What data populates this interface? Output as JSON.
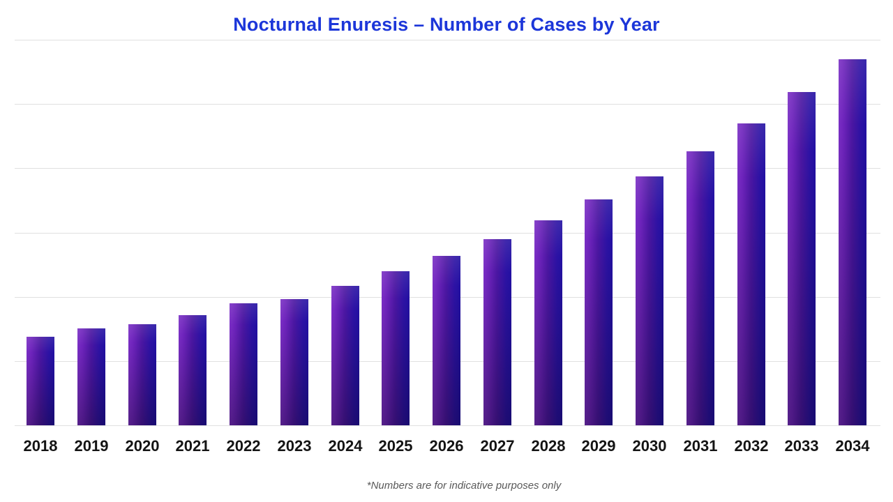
{
  "title": {
    "text": "Nocturnal Enuresis – Number of Cases by Year",
    "color": "#1c36d9"
  },
  "footnote": {
    "text": "*Numbers are for indicative purposes only",
    "color": "#595959"
  },
  "chart_data": {
    "type": "bar",
    "title": "Nocturnal Enuresis – Number of Cases by Year",
    "categories": [
      "2018",
      "2019",
      "2020",
      "2021",
      "2022",
      "2023",
      "2024",
      "2025",
      "2026",
      "2027",
      "2028",
      "2029",
      "2030",
      "2031",
      "2032",
      "2033",
      "2034"
    ],
    "values": [
      1.38,
      1.51,
      1.57,
      1.71,
      1.9,
      1.96,
      2.17,
      2.4,
      2.64,
      2.9,
      3.19,
      3.51,
      3.87,
      4.26,
      4.7,
      5.19,
      5.7
    ],
    "xlabel": "",
    "ylabel": "",
    "ylim": [
      0,
      6
    ],
    "y_axis_tick_labels_visible": false,
    "gridlines": "horizontal, 7 lines including baseline, unlabeled",
    "units_note": "y-axis has no labels; values estimated in gridline units (1 unit = 1 gridline interval)",
    "legend": "none",
    "bar_colors": {
      "gradient_from": "#7a2ec5",
      "gradient_mid": "#4b16a2",
      "gradient_to": "#0e0675"
    },
    "title_color": "#1c36d9",
    "grid_color": "#e0e0e0",
    "tick_label_color": "#141414"
  }
}
